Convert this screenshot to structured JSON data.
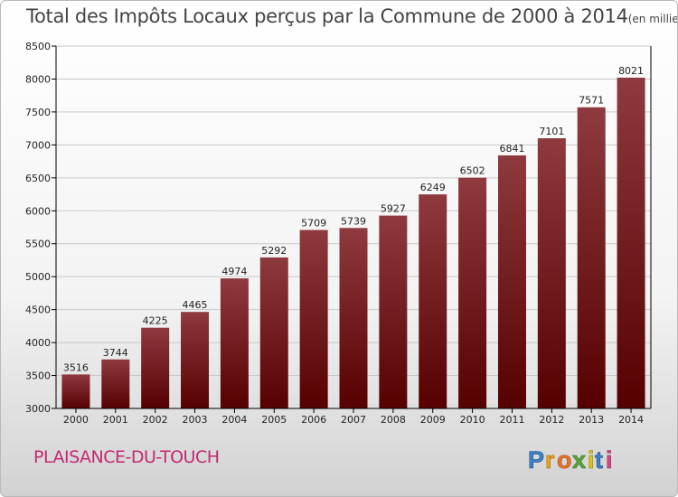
{
  "title": "Total des Impôts Locaux perçus par la Commune de 2000 à 2014",
  "title_unit": "(en milliers d'€)",
  "commune": "PLAISANCE-DU-TOUCH",
  "logo_text": "Proxiti",
  "colors": {
    "bar_top": "#8e3a3e",
    "bar_bottom": "#560000",
    "commune_text": "#c22a74",
    "axis": "#000000",
    "grid": "#c8c8c8"
  },
  "chart_data": {
    "type": "bar",
    "categories": [
      "2000",
      "2001",
      "2002",
      "2003",
      "2004",
      "2005",
      "2006",
      "2007",
      "2008",
      "2009",
      "2010",
      "2011",
      "2012",
      "2013",
      "2014"
    ],
    "values": [
      3516,
      3744,
      4225,
      4465,
      4974,
      5292,
      5709,
      5739,
      5927,
      6249,
      6502,
      6841,
      7101,
      7571,
      8021
    ],
    "ylim": [
      3000,
      8500
    ],
    "yticks": [
      3000,
      3500,
      4000,
      4500,
      5000,
      5500,
      6000,
      6500,
      7000,
      7500,
      8000,
      8500
    ],
    "grid": true,
    "data_labels": true
  }
}
